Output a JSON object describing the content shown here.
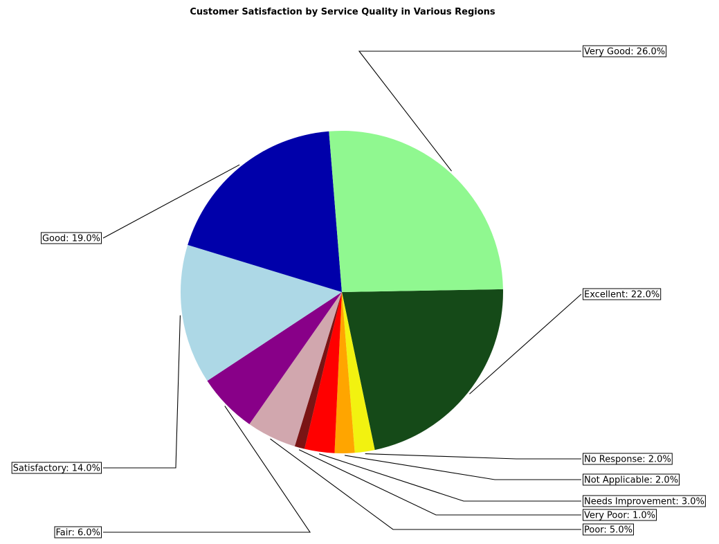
{
  "chart_data": {
    "type": "pie",
    "title": "Customer Satisfaction by Service Quality in Various Regions",
    "start_direction": "clockwise from right",
    "slices": [
      {
        "label": "Excellent",
        "value": 22.0,
        "display": "Excellent: 22.0%",
        "color": "#154a18"
      },
      {
        "label": "No Response",
        "value": 2.0,
        "display": "No Response: 2.0%",
        "color": "#f2f210"
      },
      {
        "label": "Not Applicable",
        "value": 2.0,
        "display": "Not Applicable: 2.0%",
        "color": "#ffa500"
      },
      {
        "label": "Needs Improvement",
        "value": 3.0,
        "display": "Needs Improvement: 3.0%",
        "color": "#ff0000"
      },
      {
        "label": "Very Poor",
        "value": 1.0,
        "display": "Very Poor: 1.0%",
        "color": "#7a1414"
      },
      {
        "label": "Poor",
        "value": 5.0,
        "display": "Poor: 5.0%",
        "color": "#d1a7ae"
      },
      {
        "label": "Fair",
        "value": 6.0,
        "display": "Fair: 6.0%",
        "color": "#880088"
      },
      {
        "label": "Satisfactory",
        "value": 14.0,
        "display": "Satisfactory: 14.0%",
        "color": "#add8e6"
      },
      {
        "label": "Good",
        "value": 19.0,
        "display": "Good: 19.0%",
        "color": "#0000aa"
      },
      {
        "label": "Very Good",
        "value": 26.0,
        "display": "Very Good: 26.0%",
        "color": "#90f890"
      }
    ]
  }
}
